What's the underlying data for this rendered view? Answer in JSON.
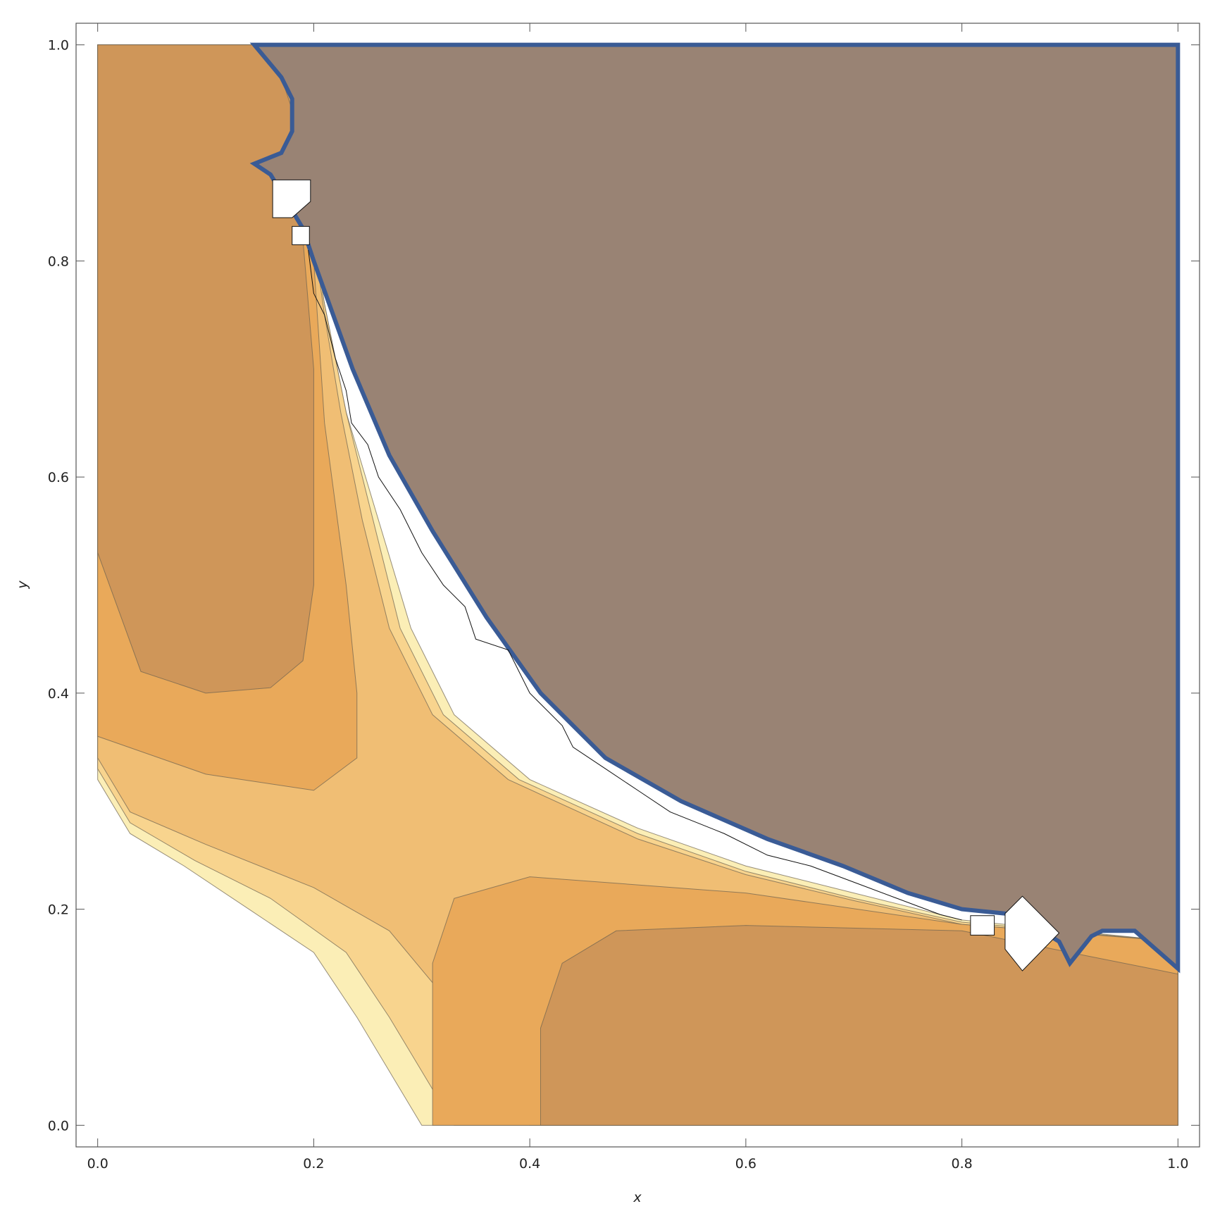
{
  "chart_data": {
    "type": "contour",
    "x_label": "x",
    "y_label": "y",
    "xlim": [
      -0.02,
      1.02
    ],
    "ylim": [
      -0.02,
      1.02
    ],
    "xticks": [
      {
        "value": 0,
        "label": "0.0"
      },
      {
        "value": 0.2,
        "label": "0.2"
      },
      {
        "value": 0.4,
        "label": "0.4"
      },
      {
        "value": 0.6,
        "label": "0.6"
      },
      {
        "value": 0.8,
        "label": "0.8"
      },
      {
        "value": 1,
        "label": "1.0"
      }
    ],
    "yticks": [
      {
        "value": 0,
        "label": "0.0"
      },
      {
        "value": 0.2,
        "label": "0.2"
      },
      {
        "value": 0.4,
        "label": "0.4"
      },
      {
        "value": 0.6,
        "label": "0.6"
      },
      {
        "value": 0.8,
        "label": "0.8"
      },
      {
        "value": 1,
        "label": "1.0"
      }
    ]
  }
}
